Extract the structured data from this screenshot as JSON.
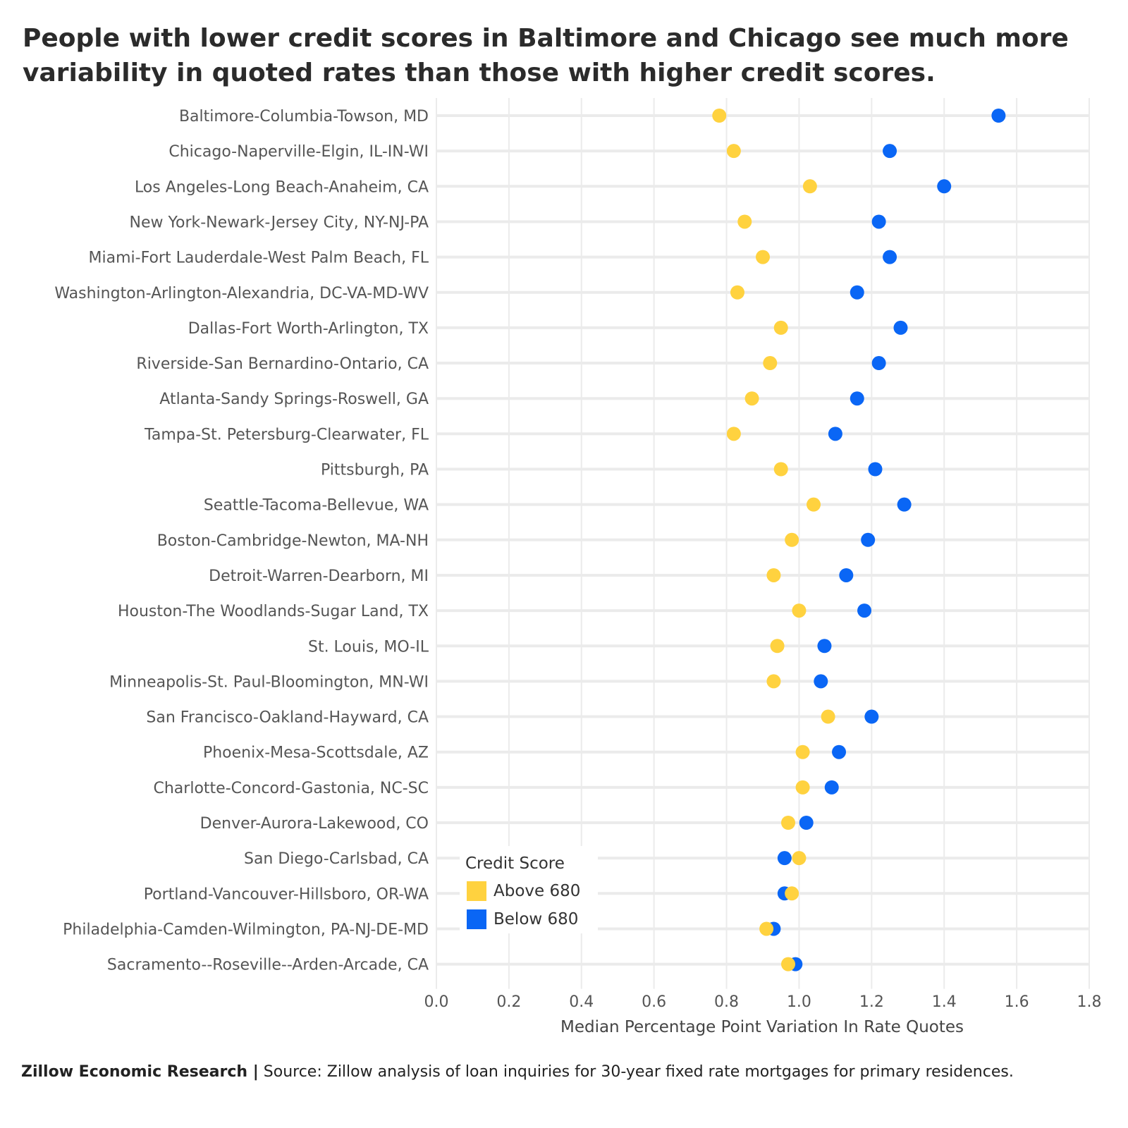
{
  "title": "People with lower credit scores in Baltimore and Chicago see much more variability in quoted rates than those with higher credit scores.",
  "footer": {
    "brand": "Zillow Economic Research |",
    "source": "Source: Zillow analysis of loan inquiries for 30-year fixed rate mortgages for primary residences."
  },
  "legend": {
    "title": "Credit Score",
    "items": [
      {
        "label": "Above 680",
        "color": "#FFD23F"
      },
      {
        "label": "Below 680",
        "color": "#0A66F5"
      }
    ]
  },
  "chart_data": {
    "type": "scatter",
    "title": "People with lower credit scores in Baltimore and Chicago see much more variability in quoted rates than those with higher credit scores.",
    "xlabel": "Median Percentage Point Variation In Rate Quotes",
    "ylabel": "",
    "xlim": [
      0.0,
      1.8
    ],
    "xticks": [
      "0.0",
      "0.2",
      "0.4",
      "0.6",
      "0.8",
      "1.0",
      "1.2",
      "1.4",
      "1.6",
      "1.8"
    ],
    "grid": true,
    "legend_position": "bottom-left",
    "categories": [
      "Baltimore-Columbia-Towson, MD",
      "Chicago-Naperville-Elgin, IL-IN-WI",
      "Los Angeles-Long Beach-Anaheim, CA",
      "New York-Newark-Jersey City, NY-NJ-PA",
      "Miami-Fort Lauderdale-West Palm Beach, FL",
      "Washington-Arlington-Alexandria, DC-VA-MD-WV",
      "Dallas-Fort Worth-Arlington, TX",
      "Riverside-San Bernardino-Ontario, CA",
      "Atlanta-Sandy Springs-Roswell, GA",
      "Tampa-St. Petersburg-Clearwater, FL",
      "Pittsburgh, PA",
      "Seattle-Tacoma-Bellevue, WA",
      "Boston-Cambridge-Newton, MA-NH",
      "Detroit-Warren-Dearborn, MI",
      "Houston-The Woodlands-Sugar Land, TX",
      "St. Louis, MO-IL",
      "Minneapolis-St. Paul-Bloomington, MN-WI",
      "San Francisco-Oakland-Hayward, CA",
      "Phoenix-Mesa-Scottsdale, AZ",
      "Charlotte-Concord-Gastonia, NC-SC",
      "Denver-Aurora-Lakewood, CO",
      "San Diego-Carlsbad, CA",
      "Portland-Vancouver-Hillsboro, OR-WA",
      "Philadelphia-Camden-Wilmington, PA-NJ-DE-MD",
      "Sacramento--Roseville--Arden-Arcade, CA"
    ],
    "series": [
      {
        "name": "Above 680",
        "color": "#FFD23F",
        "values": [
          0.78,
          0.82,
          1.03,
          0.85,
          0.9,
          0.83,
          0.95,
          0.92,
          0.87,
          0.82,
          0.95,
          1.04,
          0.98,
          0.93,
          1.0,
          0.94,
          0.93,
          1.08,
          1.01,
          1.01,
          0.97,
          1.0,
          0.98,
          0.91,
          0.97
        ]
      },
      {
        "name": "Below 680",
        "color": "#0A66F5",
        "values": [
          1.55,
          1.25,
          1.4,
          1.22,
          1.25,
          1.16,
          1.28,
          1.22,
          1.16,
          1.1,
          1.21,
          1.29,
          1.19,
          1.13,
          1.18,
          1.07,
          1.06,
          1.2,
          1.11,
          1.09,
          1.02,
          0.96,
          0.96,
          0.93,
          0.99
        ]
      }
    ]
  }
}
